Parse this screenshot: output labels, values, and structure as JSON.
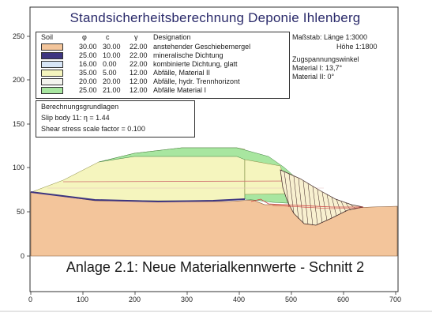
{
  "title": "Standsicherheitsberechnung Deponie Ihlenberg",
  "legend": {
    "headers": {
      "soil": "Soil",
      "phi": "φ",
      "c": "c",
      "gamma": "γ",
      "designation": "Designation"
    },
    "rows": [
      {
        "phi": "30.00",
        "c": "30.00",
        "gamma": "22.00",
        "designation": "anstehender Geschiebemergel",
        "color": "#f3c59b"
      },
      {
        "phi": "25.00",
        "c": "10.00",
        "gamma": "22.00",
        "designation": "mineralische Dichtung",
        "color": "#3d3580"
      },
      {
        "phi": "16.00",
        "c": "0.00",
        "gamma": "22.00",
        "designation": "kombinierte Dichtung, glatt",
        "color": "#d8e6f7"
      },
      {
        "phi": "35.00",
        "c": "5.00",
        "gamma": "12.00",
        "designation": "Abfälle, Material II",
        "color": "#f5f5be"
      },
      {
        "phi": "20.00",
        "c": "20.00",
        "gamma": "12.00",
        "designation": "Abfälle, hydr. Trennhorizont",
        "color": "#f4f4ee"
      },
      {
        "phi": "25.00",
        "c": "21.00",
        "gamma": "12.00",
        "designation": "Abfälle Material I",
        "color": "#a8e6a0"
      }
    ]
  },
  "scale": {
    "line1": "Maßstab: Länge 1:3000",
    "line2": "Höhe 1:1800"
  },
  "tension": {
    "title": "Zugspannungswinkel",
    "line1": "Material I: 13,7°",
    "line2": "Material II: 0°"
  },
  "basis": {
    "title": "Berechnungsgrundlagen",
    "line1": "Slip body 11: η = 1.44",
    "line2": "Shear stress scale factor = 0.100"
  },
  "caption": "Anlage 2.1: Neue Materialkennwerte - Schnitt 2",
  "axes": {
    "y_ticks": [
      "250",
      "200",
      "150",
      "100",
      "50",
      "0"
    ],
    "x_ticks": [
      "0",
      "100",
      "200",
      "300",
      "400",
      "500",
      "600",
      "700"
    ]
  },
  "colors": {
    "frame": "#303030",
    "ground": "#f3c59b",
    "seal": "#3d3580",
    "material2": "#f5f5be",
    "material1": "#a8e6a0",
    "slice_line": "#3a2020",
    "red_line": "#d04040"
  }
}
